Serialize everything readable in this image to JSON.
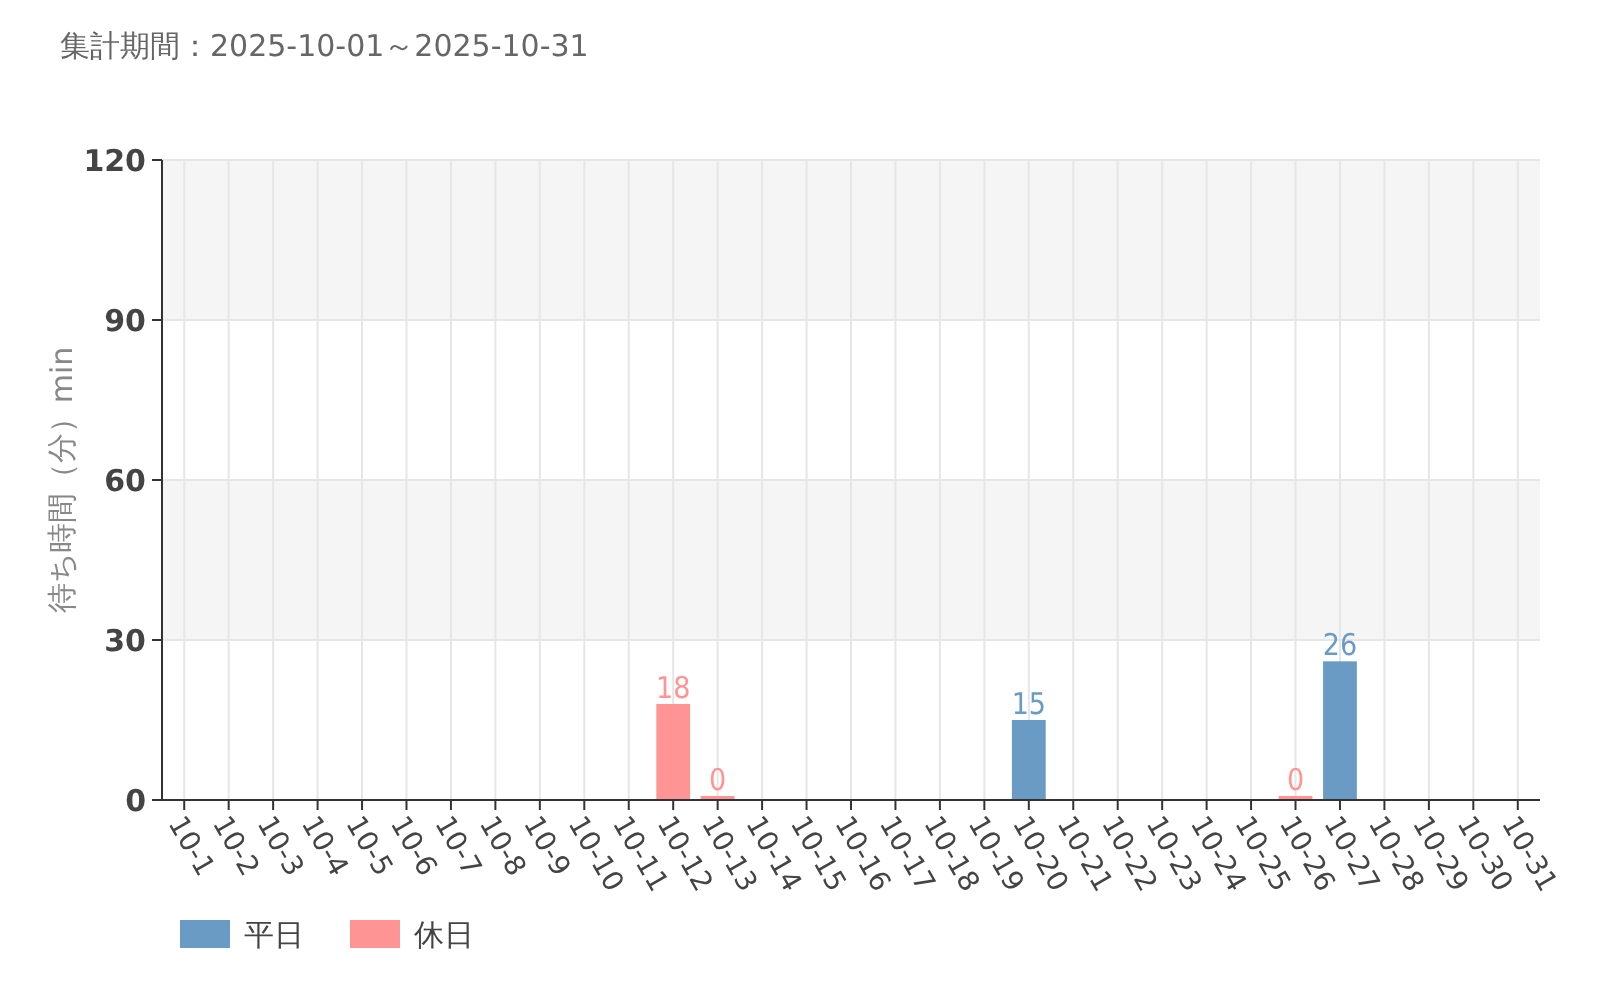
{
  "chart_data": {
    "type": "bar",
    "title": "集計期間：2025-10-01～2025-10-31",
    "ylabel": "待ち時間（分）min",
    "categories": [
      "10-1",
      "10-2",
      "10-3",
      "10-4",
      "10-5",
      "10-6",
      "10-7",
      "10-8",
      "10-9",
      "10-10",
      "10-11",
      "10-12",
      "10-13",
      "10-14",
      "10-15",
      "10-16",
      "10-17",
      "10-18",
      "10-19",
      "10-20",
      "10-21",
      "10-22",
      "10-23",
      "10-24",
      "10-25",
      "10-26",
      "10-27",
      "10-28",
      "10-29",
      "10-30",
      "10-31"
    ],
    "series": [
      {
        "name": "平日",
        "color": "#6a9bc4",
        "values": [
          null,
          null,
          null,
          null,
          null,
          null,
          null,
          null,
          null,
          null,
          null,
          null,
          null,
          null,
          null,
          null,
          null,
          null,
          null,
          15,
          null,
          null,
          null,
          null,
          null,
          null,
          26,
          null,
          null,
          null,
          null
        ]
      },
      {
        "name": "休日",
        "color": "#ff9494",
        "values": [
          null,
          null,
          null,
          null,
          null,
          null,
          null,
          null,
          null,
          null,
          null,
          18,
          0,
          null,
          null,
          null,
          null,
          null,
          null,
          null,
          null,
          null,
          null,
          null,
          null,
          0,
          null,
          null,
          null,
          null,
          null
        ]
      }
    ],
    "stacked": true,
    "ylim": [
      0,
      120
    ],
    "yticks": [
      0,
      30,
      60,
      90,
      120
    ],
    "grid": true,
    "bands": [
      {
        "axis": "y",
        "from": 30,
        "to": 60,
        "color": "#f5f5f5"
      },
      {
        "axis": "y",
        "from": 90,
        "to": 120,
        "color": "#f5f5f5"
      }
    ],
    "data_labels": true,
    "legend": "bottom left"
  }
}
